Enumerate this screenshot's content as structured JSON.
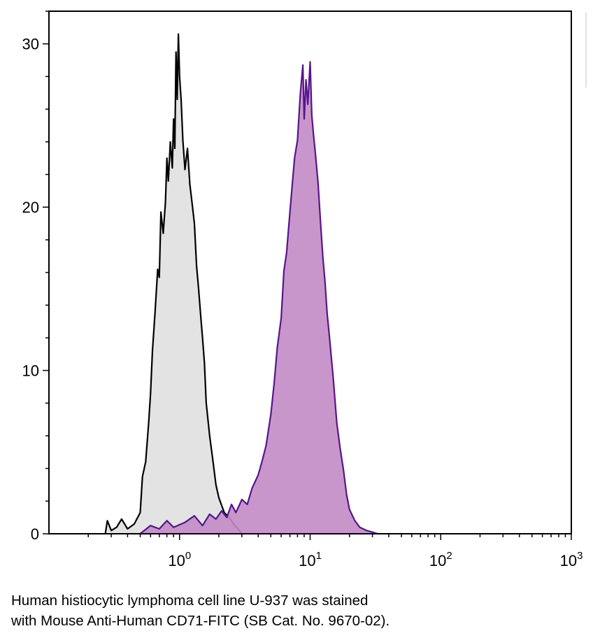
{
  "chart_data": {
    "type": "area",
    "x_scale": "log",
    "x_range": [
      0.1,
      1000
    ],
    "y_range": [
      0,
      32
    ],
    "y_ticks": [
      0,
      10,
      20,
      30
    ],
    "y_tick_labels": [
      "0",
      "10",
      "20",
      "30"
    ],
    "x_ticks": [
      1,
      10,
      100,
      1000
    ],
    "x_tick_labels": [
      {
        "base": "10",
        "exp": "0"
      },
      {
        "base": "10",
        "exp": "1"
      },
      {
        "base": "10",
        "exp": "2"
      },
      {
        "base": "10",
        "exp": "3"
      }
    ],
    "grid": false,
    "xlabel": "",
    "ylabel": "",
    "title": "",
    "series": [
      {
        "key": "control",
        "stroke": "#000000",
        "fill": "#e0e0e0",
        "points": [
          [
            0.27,
            0
          ],
          [
            0.28,
            0.8
          ],
          [
            0.3,
            0.2
          ],
          [
            0.33,
            0.4
          ],
          [
            0.36,
            0.9
          ],
          [
            0.4,
            0.3
          ],
          [
            0.45,
            0.6
          ],
          [
            0.5,
            1.3
          ],
          [
            0.52,
            3.5
          ],
          [
            0.55,
            4.4
          ],
          [
            0.58,
            6.8
          ],
          [
            0.6,
            8.6
          ],
          [
            0.62,
            11.2
          ],
          [
            0.65,
            13.6
          ],
          [
            0.68,
            16.2
          ],
          [
            0.7,
            15.7
          ],
          [
            0.72,
            19.7
          ],
          [
            0.75,
            18.4
          ],
          [
            0.78,
            20.3
          ],
          [
            0.8,
            23.0
          ],
          [
            0.82,
            21.6
          ],
          [
            0.85,
            24.0
          ],
          [
            0.88,
            22.4
          ],
          [
            0.9,
            25.4
          ],
          [
            0.92,
            23.6
          ],
          [
            0.94,
            29.5
          ],
          [
            0.96,
            26.6
          ],
          [
            0.98,
            30.6
          ],
          [
            1.0,
            28.0
          ],
          [
            1.03,
            26.5
          ],
          [
            1.06,
            24.1
          ],
          [
            1.1,
            22.3
          ],
          [
            1.15,
            23.6
          ],
          [
            1.2,
            21.4
          ],
          [
            1.25,
            20.2
          ],
          [
            1.3,
            19.0
          ],
          [
            1.35,
            16.4
          ],
          [
            1.4,
            15.0
          ],
          [
            1.45,
            13.4
          ],
          [
            1.5,
            12.0
          ],
          [
            1.55,
            10.5
          ],
          [
            1.6,
            8.0
          ],
          [
            1.7,
            6.0
          ],
          [
            1.8,
            4.5
          ],
          [
            1.9,
            3.0
          ],
          [
            2.0,
            2.2
          ],
          [
            2.2,
            1.3
          ],
          [
            2.4,
            1.0
          ],
          [
            2.6,
            0.6
          ],
          [
            2.8,
            0.3
          ],
          [
            3.0,
            0
          ]
        ]
      },
      {
        "key": "cd71",
        "stroke": "#57148c",
        "fill": "#c38bc5",
        "points": [
          [
            0.5,
            0
          ],
          [
            0.6,
            0.5
          ],
          [
            0.7,
            0.3
          ],
          [
            0.8,
            0.8
          ],
          [
            0.9,
            0.4
          ],
          [
            1.1,
            0.7
          ],
          [
            1.3,
            1.1
          ],
          [
            1.5,
            0.5
          ],
          [
            1.7,
            1.2
          ],
          [
            1.9,
            0.9
          ],
          [
            2.1,
            1.4
          ],
          [
            2.3,
            1.0
          ],
          [
            2.5,
            1.8
          ],
          [
            2.7,
            1.3
          ],
          [
            3.0,
            2.1
          ],
          [
            3.3,
            1.8
          ],
          [
            3.6,
            2.8
          ],
          [
            4.0,
            3.6
          ],
          [
            4.3,
            4.5
          ],
          [
            4.6,
            5.4
          ],
          [
            5.0,
            7.3
          ],
          [
            5.3,
            9.2
          ],
          [
            5.6,
            11.4
          ],
          [
            6.0,
            13.2
          ],
          [
            6.3,
            16.1
          ],
          [
            6.6,
            17.2
          ],
          [
            7.0,
            19.7
          ],
          [
            7.3,
            21.4
          ],
          [
            7.6,
            23.0
          ],
          [
            8.0,
            24.1
          ],
          [
            8.4,
            26.9
          ],
          [
            8.8,
            28.7
          ],
          [
            9.0,
            25.4
          ],
          [
            9.3,
            27.8
          ],
          [
            9.6,
            26.3
          ],
          [
            10.0,
            28.9
          ],
          [
            10.3,
            25.6
          ],
          [
            10.6,
            24.5
          ],
          [
            11.0,
            23.2
          ],
          [
            11.5,
            21.5
          ],
          [
            12.0,
            19.1
          ],
          [
            12.5,
            17.0
          ],
          [
            13.0,
            15.4
          ],
          [
            13.5,
            13.5
          ],
          [
            14.0,
            12.2
          ],
          [
            15.0,
            9.6
          ],
          [
            16.0,
            6.8
          ],
          [
            17.0,
            5.2
          ],
          [
            18.0,
            3.9
          ],
          [
            19.0,
            2.4
          ],
          [
            20.0,
            1.5
          ],
          [
            22.0,
            0.8
          ],
          [
            24.0,
            0.4
          ],
          [
            27.0,
            0.2
          ],
          [
            30.0,
            0.1
          ],
          [
            33.0,
            0
          ]
        ]
      }
    ]
  },
  "caption": {
    "line1": "Human histiocytic lymphoma cell line U-937 was stained",
    "line2": "with Mouse Anti-Human CD71-FITC (SB Cat. No. 9670-02)."
  }
}
